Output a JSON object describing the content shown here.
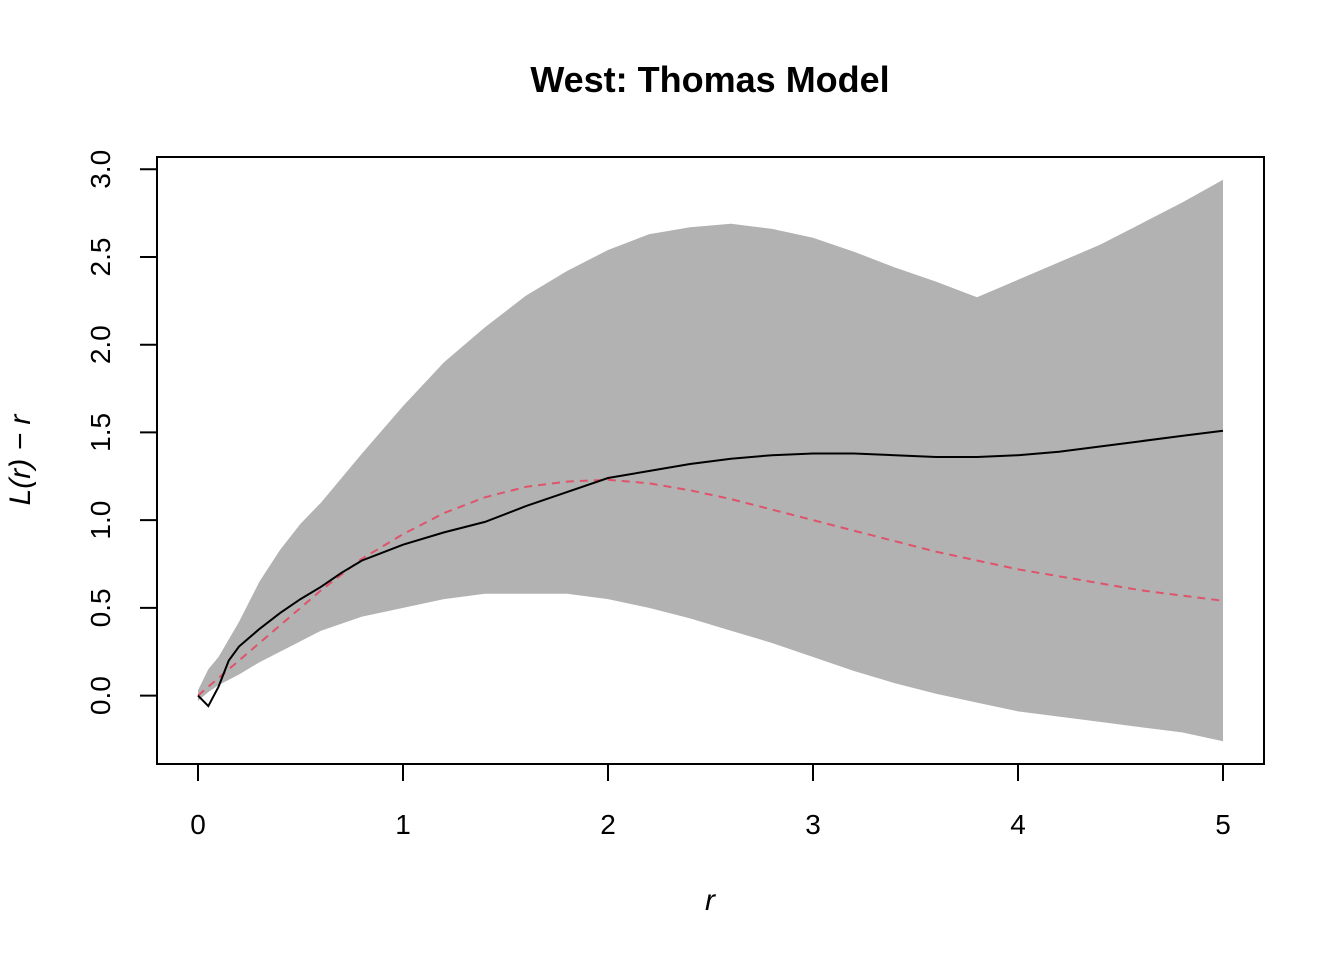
{
  "chart_data": {
    "type": "line",
    "title": "West: Thomas Model",
    "xlabel": "r",
    "ylabel": "L(r) − r",
    "xlim": [
      -0.2,
      5.2
    ],
    "ylim": [
      -0.39,
      3.07
    ],
    "x_ticks": [
      "0",
      "1",
      "2",
      "3",
      "4",
      "5"
    ],
    "y_ticks": [
      "0.0",
      "0.5",
      "1.0",
      "1.5",
      "2.0",
      "2.5",
      "3.0"
    ],
    "grid": false,
    "legend": "none",
    "envelope": {
      "color": "#b2b2b2",
      "x": [
        0,
        0.05,
        0.1,
        0.2,
        0.3,
        0.4,
        0.5,
        0.6,
        0.8,
        1.0,
        1.2,
        1.4,
        1.6,
        1.8,
        2.0,
        2.2,
        2.4,
        2.6,
        2.8,
        3.0,
        3.2,
        3.4,
        3.6,
        3.8,
        4.0,
        4.2,
        4.4,
        4.6,
        4.8,
        5.0
      ],
      "upper": [
        0.03,
        0.15,
        0.22,
        0.42,
        0.65,
        0.83,
        0.98,
        1.1,
        1.38,
        1.65,
        1.9,
        2.1,
        2.28,
        2.42,
        2.54,
        2.63,
        2.67,
        2.69,
        2.66,
        2.61,
        2.53,
        2.44,
        2.36,
        2.27,
        2.37,
        2.47,
        2.57,
        2.69,
        2.81,
        2.94
      ],
      "lower": [
        -0.03,
        0.02,
        0.06,
        0.12,
        0.19,
        0.25,
        0.31,
        0.37,
        0.45,
        0.5,
        0.55,
        0.58,
        0.58,
        0.58,
        0.55,
        0.5,
        0.44,
        0.37,
        0.3,
        0.22,
        0.14,
        0.07,
        0.01,
        -0.04,
        -0.09,
        -0.12,
        -0.15,
        -0.18,
        -0.21,
        -0.26
      ]
    },
    "series": [
      {
        "color": "#000000",
        "style": "solid",
        "x": [
          0,
          0.05,
          0.1,
          0.15,
          0.2,
          0.3,
          0.4,
          0.5,
          0.6,
          0.7,
          0.8,
          1.0,
          1.2,
          1.4,
          1.6,
          1.8,
          2.0,
          2.2,
          2.4,
          2.6,
          2.8,
          3.0,
          3.2,
          3.4,
          3.6,
          3.8,
          4.0,
          4.2,
          4.4,
          4.6,
          4.8,
          5.0
        ],
        "values": [
          0,
          -0.06,
          0.05,
          0.2,
          0.28,
          0.38,
          0.47,
          0.55,
          0.62,
          0.7,
          0.77,
          0.86,
          0.93,
          0.99,
          1.08,
          1.16,
          1.24,
          1.28,
          1.32,
          1.35,
          1.37,
          1.38,
          1.38,
          1.37,
          1.36,
          1.36,
          1.37,
          1.39,
          1.42,
          1.45,
          1.48,
          1.51
        ]
      },
      {
        "color": "#df536b",
        "style": "dashed",
        "x": [
          0,
          0.2,
          0.4,
          0.6,
          0.8,
          1.0,
          1.2,
          1.4,
          1.6,
          1.8,
          2.0,
          2.2,
          2.4,
          2.6,
          2.8,
          3.0,
          3.2,
          3.4,
          3.6,
          3.8,
          4.0,
          4.2,
          4.4,
          4.6,
          4.8,
          5.0
        ],
        "values": [
          0,
          0.2,
          0.4,
          0.6,
          0.78,
          0.92,
          1.04,
          1.13,
          1.19,
          1.22,
          1.23,
          1.21,
          1.17,
          1.12,
          1.06,
          1.0,
          0.94,
          0.88,
          0.82,
          0.77,
          0.72,
          0.68,
          0.64,
          0.6,
          0.57,
          0.54
        ]
      }
    ]
  }
}
